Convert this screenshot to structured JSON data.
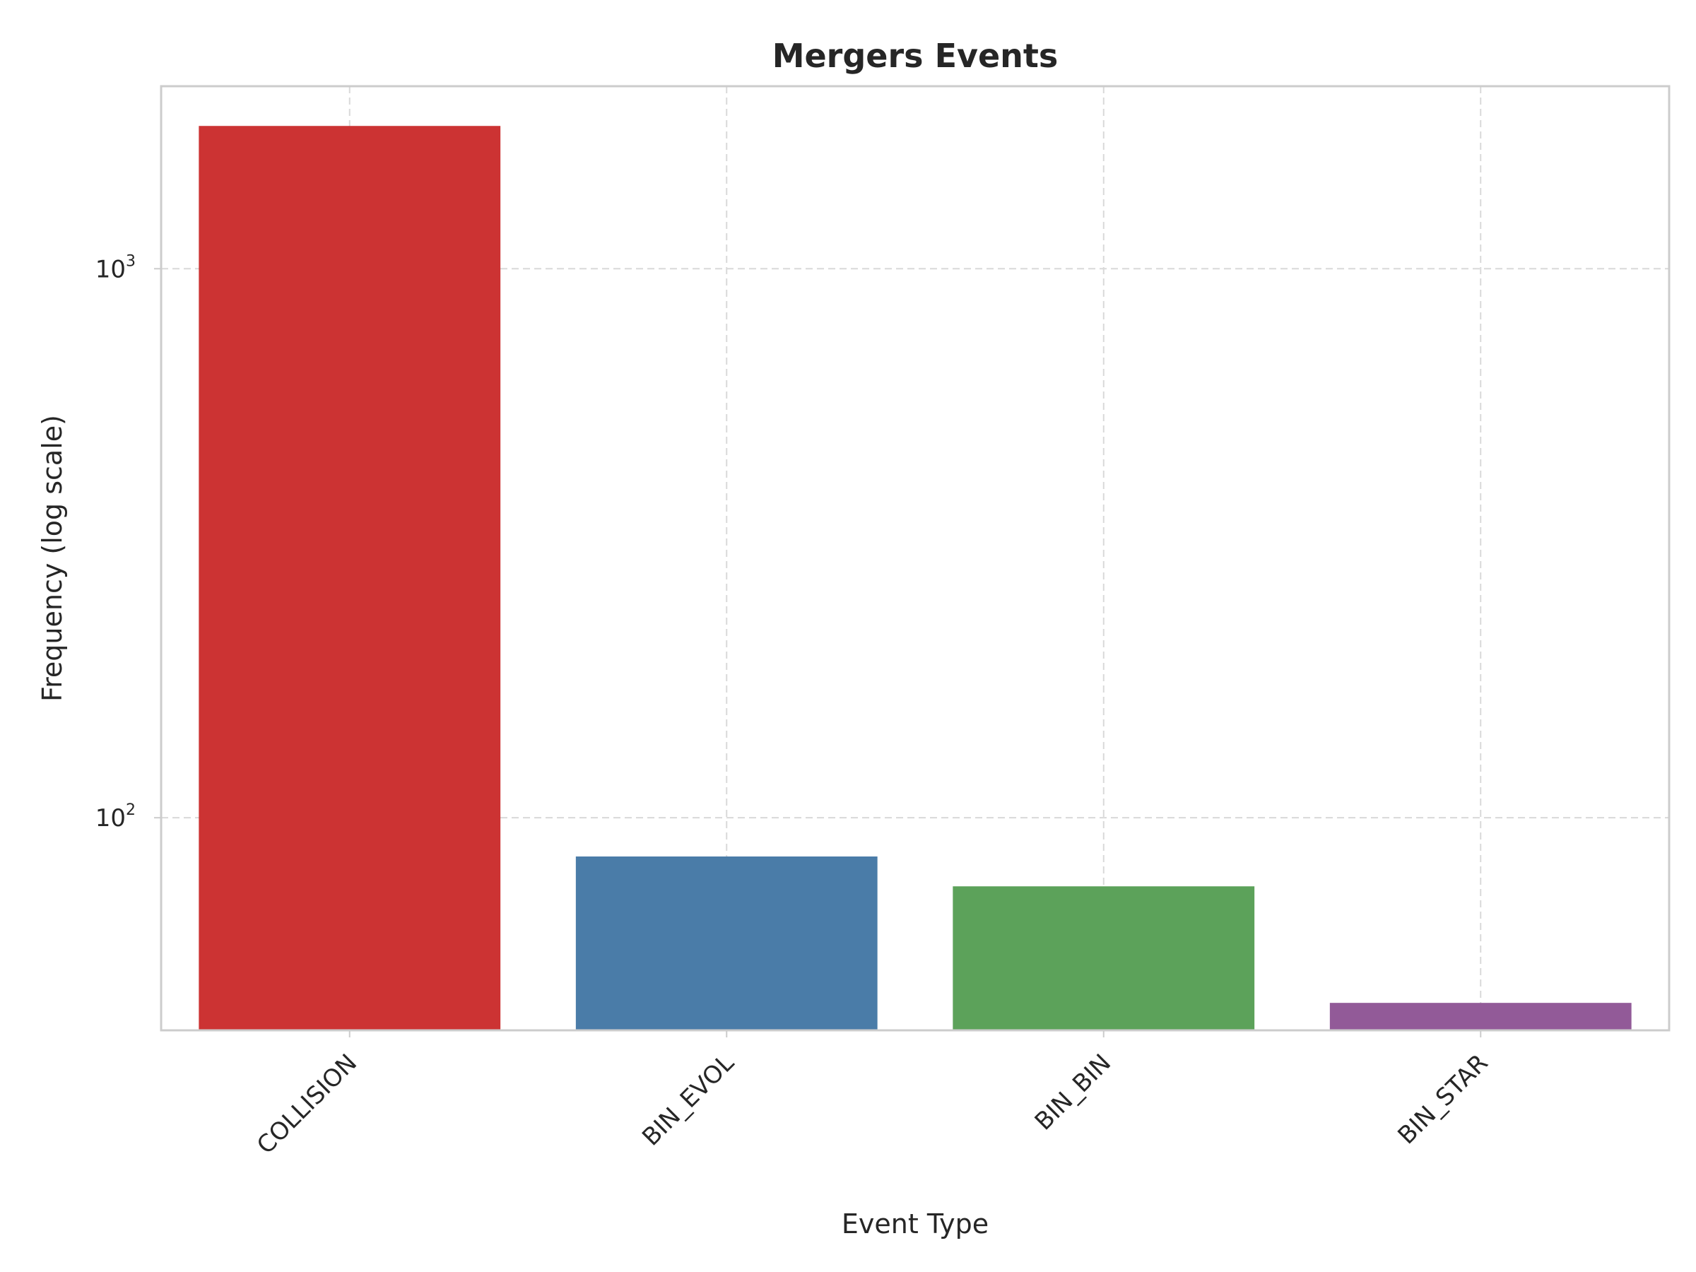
{
  "chart_data": {
    "type": "bar",
    "title": "Mergers Events",
    "xlabel": "Event Type",
    "ylabel": "Frequency (log scale)",
    "yscale": "log",
    "ylim": [
      41,
      2150
    ],
    "categories": [
      "COLLISION",
      "BIN_EVOL",
      "BIN_BIN",
      "BIN_STAR"
    ],
    "values": [
      1820,
      85,
      75,
      46
    ],
    "colors": [
      "#cc3333",
      "#4a7ca8",
      "#5ca25a",
      "#925a98"
    ],
    "yticks": [
      {
        "value": 100,
        "base": "10",
        "exp": "2"
      },
      {
        "value": 1000,
        "base": "10",
        "exp": "3"
      }
    ],
    "grid": true,
    "legend": "none"
  }
}
